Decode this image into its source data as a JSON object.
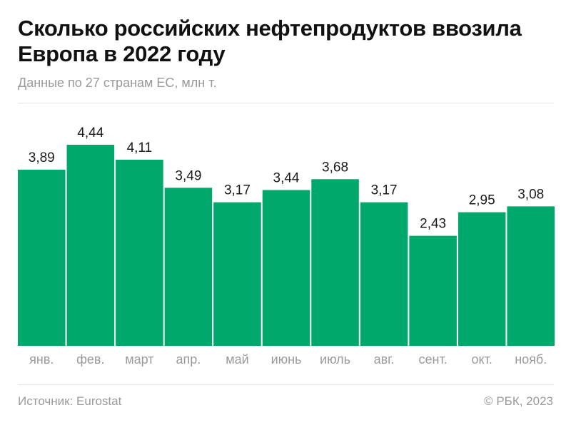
{
  "header": {
    "title": "Сколько российских нефтепродуктов ввозила Европа в 2022 году",
    "subtitle": "Данные по 27 странам ЕС, млн т."
  },
  "footer": {
    "source": "Источник: Eurostat",
    "copyright": "© РБК, 2023"
  },
  "chart_data": {
    "type": "bar",
    "title": "Сколько российских нефтепродуктов ввозила Европа в 2022 году",
    "subtitle": "Данные по 27 странам ЕС, млн т.",
    "categories": [
      "янв.",
      "фев.",
      "март",
      "апр.",
      "май",
      "июнь",
      "июль",
      "авг.",
      "сент.",
      "окт.",
      "нояб."
    ],
    "values": [
      3.89,
      4.44,
      4.11,
      3.49,
      3.17,
      3.44,
      3.68,
      3.17,
      2.43,
      2.95,
      3.08
    ],
    "labels": [
      "3,89",
      "4,44",
      "4,11",
      "3,49",
      "3,17",
      "3,44",
      "3,68",
      "3,17",
      "2,43",
      "2,95",
      "3,08"
    ],
    "ylim": [
      0,
      4.44
    ],
    "grid": false,
    "bar_color": "#00a86b"
  }
}
